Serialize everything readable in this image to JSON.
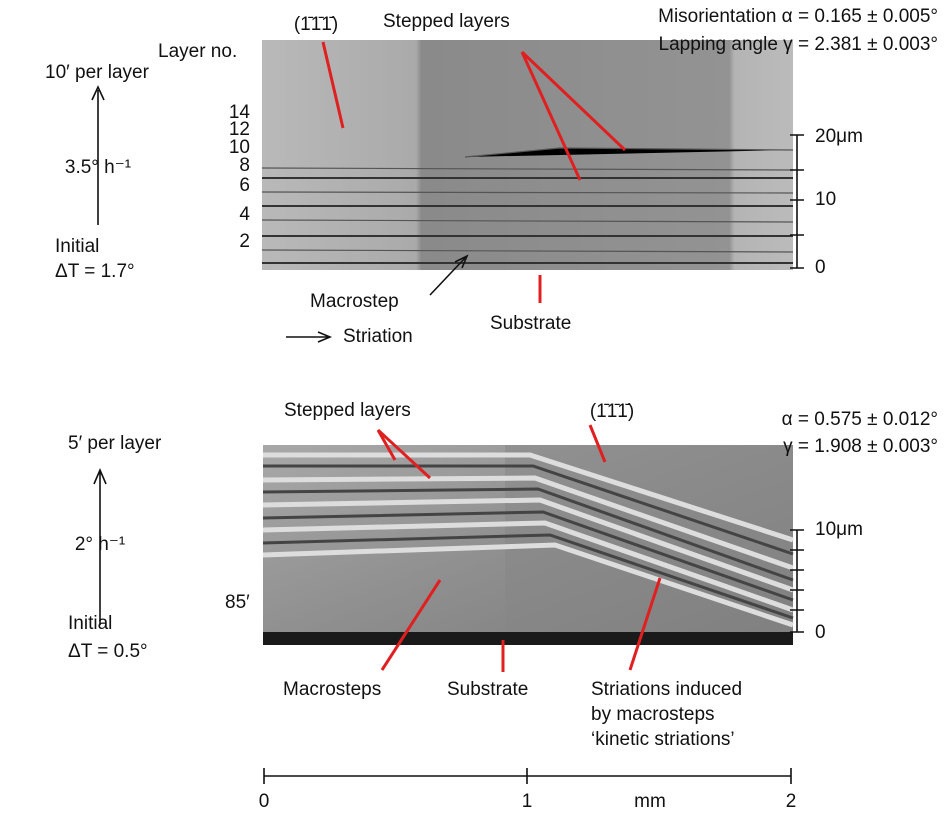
{
  "top_panel": {
    "rate_per_layer": "10′ per layer",
    "cooling_rate": "3.5° h⁻¹",
    "initial": "Initial",
    "delta_t": "ΔT = 1.7°",
    "layer_no": "Layer no.",
    "layer_numbers": [
      "14",
      "12",
      "10",
      "8",
      "6",
      "4",
      "2"
    ],
    "plane": "(1̄1̄1̄)",
    "stepped_layers": "Stepped layers",
    "misorientation": "Misorientation α = 0.165 ± 0.005°",
    "lapping_angle": "Lapping angle γ = 2.381 ± 0.003°",
    "scale_labels": [
      "20μm",
      "10",
      "0"
    ],
    "macrostep": "Macrostep",
    "striation": "Striation",
    "substrate": "Substrate"
  },
  "bottom_panel": {
    "misorientation": "α = 0.575 ± 0.012°",
    "lapping_angle": "γ = 1.908 ± 0.003°",
    "plane": "(1̄1̄1̄)",
    "stepped_layers": "Stepped layers",
    "rate_per_layer": "5′ per layer",
    "cooling_rate": "2° h⁻¹",
    "initial": "Initial",
    "delta_t": "ΔT = 0.5°",
    "angle": "85′",
    "scale_labels": [
      "10μm",
      "0"
    ],
    "macrosteps": "Macrosteps",
    "substrate": "Substrate",
    "striations": [
      "Striations induced",
      "by macrosteps",
      "‘kinetic striations’"
    ]
  },
  "scale_bar": {
    "labels": [
      "0",
      "1",
      "2"
    ],
    "unit": "mm"
  }
}
